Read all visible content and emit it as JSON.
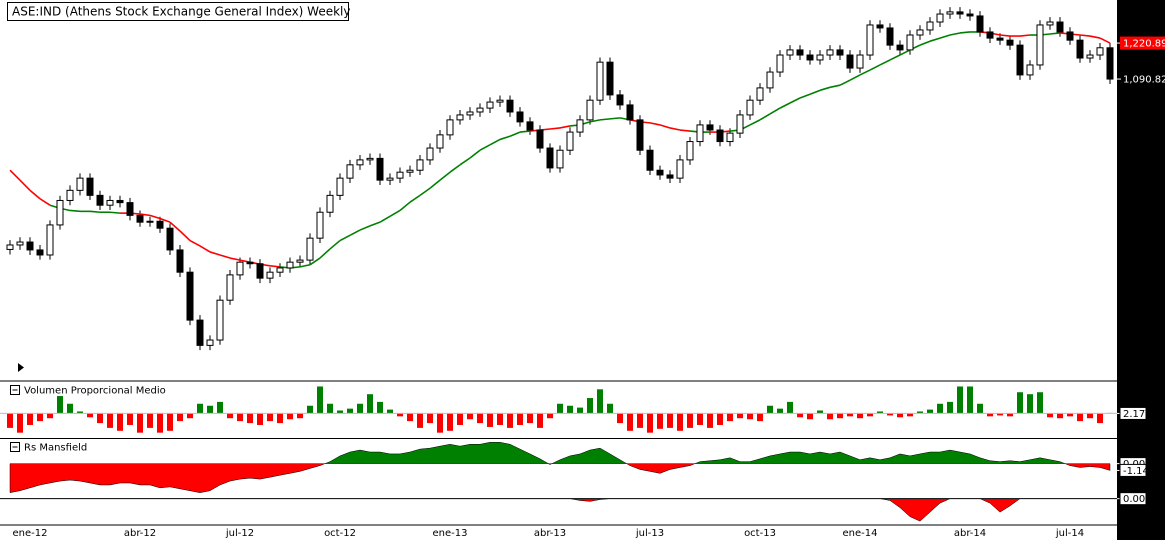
{
  "chart_data": [
    {
      "type": "candlestick",
      "title": "ASE:IND (Athens Stock Exchange General Index) Weekly",
      "categories": [
        null,
        null,
        "ene-12",
        null,
        null,
        null,
        null,
        null,
        null,
        null,
        null,
        null,
        null,
        "abr-12",
        null,
        null,
        null,
        null,
        null,
        null,
        null,
        null,
        null,
        "jul-12",
        null,
        null,
        null,
        null,
        null,
        null,
        null,
        null,
        null,
        "oct-12",
        null,
        null,
        null,
        null,
        null,
        null,
        null,
        null,
        null,
        null,
        "ene-13",
        null,
        null,
        null,
        null,
        null,
        null,
        null,
        null,
        null,
        "abr-13",
        null,
        null,
        null,
        null,
        null,
        null,
        null,
        null,
        null,
        "jul-13",
        null,
        null,
        null,
        null,
        null,
        null,
        null,
        null,
        null,
        null,
        "oct-13",
        null,
        null,
        null,
        null,
        null,
        null,
        null,
        null,
        null,
        "ene-14",
        null,
        null,
        null,
        null,
        null,
        null,
        null,
        null,
        null,
        null,
        "abr-14",
        null,
        null,
        null,
        null,
        null,
        null,
        null,
        null,
        null,
        "jul-14",
        null,
        null,
        null,
        null
      ],
      "candles": [
        [
          640,
          659,
          630,
          649
        ],
        [
          649,
          665,
          639,
          655
        ],
        [
          655,
          665,
          629,
          639
        ],
        [
          639,
          649,
          620,
          629
        ],
        [
          629,
          701,
          620,
          691
        ],
        [
          691,
          757,
          681,
          746
        ],
        [
          746,
          782,
          735,
          770
        ],
        [
          770,
          812,
          758,
          800
        ],
        [
          800,
          812,
          747,
          758
        ],
        [
          758,
          769,
          724,
          735
        ],
        [
          735,
          757,
          724,
          746
        ],
        [
          746,
          757,
          730,
          741
        ],
        [
          741,
          752,
          701,
          712
        ],
        [
          712,
          723,
          687,
          697
        ],
        [
          697,
          709,
          687,
          699
        ],
        [
          699,
          709,
          674,
          684
        ],
        [
          684,
          694,
          629,
          639
        ],
        [
          639,
          649,
          587,
          596
        ],
        [
          596,
          605,
          505,
          513
        ],
        [
          513,
          521,
          467,
          474
        ],
        [
          474,
          489,
          467,
          482
        ],
        [
          482,
          554,
          475,
          546
        ],
        [
          546,
          600,
          538,
          591
        ],
        [
          591,
          624,
          582,
          615
        ],
        [
          615,
          624,
          603,
          612
        ],
        [
          612,
          621,
          576,
          585
        ],
        [
          585,
          605,
          576,
          596
        ],
        [
          596,
          613,
          587,
          604
        ],
        [
          604,
          624,
          595,
          615
        ],
        [
          615,
          628,
          606,
          619
        ],
        [
          619,
          673,
          610,
          663
        ],
        [
          663,
          730,
          653,
          719
        ],
        [
          719,
          769,
          708,
          758
        ],
        [
          758,
          812,
          747,
          800
        ],
        [
          800,
          847,
          788,
          834
        ],
        [
          834,
          860,
          821,
          847
        ],
        [
          847,
          864,
          834,
          851
        ],
        [
          851,
          864,
          783,
          795
        ],
        [
          795,
          812,
          783,
          800
        ],
        [
          800,
          827,
          788,
          815
        ],
        [
          815,
          832,
          803,
          820
        ],
        [
          820,
          860,
          808,
          847
        ],
        [
          847,
          892,
          834,
          879
        ],
        [
          879,
          930,
          866,
          916
        ],
        [
          916,
          974,
          902,
          960
        ],
        [
          960,
          990,
          946,
          975
        ],
        [
          975,
          999,
          960,
          984
        ],
        [
          984,
          1011,
          969,
          996
        ],
        [
          996,
          1030,
          981,
          1015
        ],
        [
          1015,
          1036,
          1000,
          1021
        ],
        [
          1021,
          1036,
          969,
          984
        ],
        [
          984,
          999,
          940,
          954
        ],
        [
          954,
          968,
          916,
          930
        ],
        [
          930,
          944,
          866,
          879
        ],
        [
          879,
          892,
          814,
          826
        ],
        [
          826,
          886,
          814,
          873
        ],
        [
          873,
          938,
          860,
          924
        ],
        [
          924,
          974,
          910,
          960
        ],
        [
          960,
          1036,
          946,
          1021
        ],
        [
          1021,
          1167,
          1006,
          1150
        ],
        [
          1150,
          1167,
          1022,
          1038
        ],
        [
          1038,
          1054,
          991,
          1006
        ],
        [
          1006,
          1021,
          946,
          960
        ],
        [
          960,
          974,
          860,
          873
        ],
        [
          873,
          886,
          808,
          820
        ],
        [
          820,
          832,
          796,
          808
        ],
        [
          808,
          820,
          788,
          800
        ],
        [
          800,
          860,
          788,
          847
        ],
        [
          847,
          910,
          834,
          897
        ],
        [
          897,
          959,
          884,
          945
        ],
        [
          945,
          959,
          916,
          930
        ],
        [
          930,
          944,
          884,
          897
        ],
        [
          897,
          935,
          884,
          921
        ],
        [
          921,
          990,
          907,
          975
        ],
        [
          975,
          1036,
          960,
          1021
        ],
        [
          1021,
          1077,
          1006,
          1061
        ],
        [
          1061,
          1132,
          1045,
          1115
        ],
        [
          1115,
          1194,
          1098,
          1176
        ],
        [
          1176,
          1213,
          1158,
          1195
        ],
        [
          1195,
          1213,
          1158,
          1176
        ],
        [
          1176,
          1194,
          1141,
          1158
        ],
        [
          1158,
          1194,
          1141,
          1176
        ],
        [
          1176,
          1213,
          1158,
          1195
        ],
        [
          1195,
          1213,
          1158,
          1176
        ],
        [
          1176,
          1194,
          1112,
          1129
        ],
        [
          1129,
          1194,
          1112,
          1176
        ],
        [
          1176,
          1311,
          1158,
          1292
        ],
        [
          1292,
          1311,
          1261,
          1280
        ],
        [
          1280,
          1299,
          1195,
          1213
        ],
        [
          1213,
          1231,
          1177,
          1195
        ],
        [
          1195,
          1271,
          1177,
          1252
        ],
        [
          1252,
          1291,
          1233,
          1272
        ],
        [
          1272,
          1324,
          1253,
          1304
        ],
        [
          1304,
          1357,
          1284,
          1337
        ],
        [
          1337,
          1366,
          1317,
          1346
        ],
        [
          1346,
          1366,
          1317,
          1337
        ],
        [
          1337,
          1357,
          1309,
          1329
        ],
        [
          1329,
          1349,
          1245,
          1264
        ],
        [
          1264,
          1283,
          1221,
          1240
        ],
        [
          1240,
          1259,
          1214,
          1232
        ],
        [
          1232,
          1250,
          1195,
          1213
        ],
        [
          1213,
          1231,
          1088,
          1105
        ],
        [
          1105,
          1157,
          1088,
          1140
        ],
        [
          1140,
          1311,
          1123,
          1292
        ],
        [
          1292,
          1324,
          1273,
          1304
        ],
        [
          1304,
          1324,
          1245,
          1264
        ],
        [
          1264,
          1283,
          1214,
          1232
        ],
        [
          1232,
          1250,
          1148,
          1165
        ],
        [
          1165,
          1194,
          1148,
          1176
        ],
        [
          1176,
          1221,
          1158,
          1203
        ],
        [
          1203,
          1221,
          1074,
          1090.82
        ]
      ],
      "up_color": "#ffffff",
      "down_color": "#000000",
      "series": [
        {
          "values": [
            820,
            795,
            770,
            750,
            735,
            728,
            723,
            721,
            721,
            719,
            719,
            717,
            717,
            715,
            712,
            705,
            697,
            678,
            658,
            647,
            635,
            629,
            623,
            619,
            615,
            611,
            608,
            606,
            604,
            606,
            610,
            623,
            641,
            658,
            669,
            680,
            689,
            697,
            710,
            723,
            742,
            758,
            775,
            795,
            815,
            834,
            852,
            873,
            888,
            903,
            912,
            924,
            927,
            930,
            933,
            936,
            942,
            945,
            954,
            960,
            963,
            966,
            960,
            954,
            951,
            945,
            936,
            930,
            927,
            924,
            924,
            924,
            927,
            930,
            945,
            960,
            978,
            996,
            1012,
            1028,
            1040,
            1053,
            1063,
            1070,
            1087,
            1105,
            1122,
            1140,
            1158,
            1176,
            1195,
            1213,
            1228,
            1240,
            1252,
            1260,
            1264,
            1264,
            1260,
            1252,
            1248,
            1248,
            1252,
            1252,
            1256,
            1260,
            1256,
            1252,
            1248,
            1240,
            1220.89
          ],
          "color_above": "#008000",
          "color_below": "#ff0000"
        }
      ],
      "ylim": [
        428,
        1397
      ],
      "log_scale": true,
      "yticks": [
        {
          "value": 1220.89,
          "label": "1,220.89"
        },
        {
          "value": 1090.82,
          "label": "1,090.82"
        }
      ]
    },
    {
      "type": "bar",
      "title": "Volumen Proporcional Medio",
      "values": [
        0.78,
        0.32,
        1.06,
        1.43,
        1.71,
        3.84,
        3.1,
        2.36,
        1.8,
        1.24,
        0.78,
        0.5,
        1.06,
        0.32,
        0.78,
        0.32,
        0.5,
        1.43,
        1.71,
        3.1,
        2.91,
        3.28,
        1.71,
        1.43,
        1.24,
        1.06,
        1.43,
        1.24,
        1.61,
        1.71,
        2.91,
        4.76,
        3.1,
        2.45,
        2.63,
        3.1,
        4.02,
        3.28,
        2.54,
        1.89,
        1.43,
        0.78,
        1.24,
        0.32,
        0.5,
        1.06,
        1.61,
        1.24,
        0.87,
        1.06,
        0.78,
        1.06,
        1.24,
        0.78,
        1.71,
        3.1,
        2.91,
        2.73,
        3.65,
        4.49,
        3.1,
        1.24,
        0.5,
        0.78,
        0.32,
        0.69,
        0.78,
        0.5,
        0.78,
        1.06,
        0.78,
        1.06,
        1.43,
        1.71,
        1.61,
        1.43,
        2.91,
        2.63,
        3.28,
        1.8,
        1.61,
        2.45,
        1.61,
        1.71,
        1.89,
        1.71,
        1.89,
        2.36,
        1.98,
        1.8,
        1.89,
        2.36,
        2.54,
        3.1,
        3.28,
        4.76,
        4.76,
        3.1,
        1.89,
        1.98,
        1.89,
        4.21,
        4.02,
        4.21,
        1.8,
        1.71,
        1.89,
        1.43,
        1.71,
        1.24,
        2.22
      ],
      "baseline": 2.17,
      "up_color": "#008000",
      "down_color": "#ff0000",
      "ylim": [
        0,
        5
      ],
      "yticks": [
        2.17
      ],
      "grid": true
    },
    {
      "type": "area",
      "title": "Rs Mansfield",
      "values": [
        -4.88,
        -4.55,
        -4.07,
        -3.58,
        -3.25,
        -2.93,
        -2.76,
        -2.93,
        -3.25,
        -3.58,
        -3.58,
        -3.25,
        -3.25,
        -3.58,
        -3.58,
        -4.07,
        -3.9,
        -4.23,
        -4.55,
        -4.88,
        -4.55,
        -3.58,
        -2.93,
        -2.6,
        -2.44,
        -2.6,
        -2.28,
        -1.95,
        -1.63,
        -1.3,
        -0.81,
        -0.33,
        0.33,
        1.3,
        1.95,
        2.28,
        1.95,
        1.95,
        1.63,
        1.63,
        1.95,
        2.44,
        2.6,
        2.93,
        3.25,
        2.93,
        3.25,
        3.25,
        3.58,
        3.58,
        3.25,
        2.44,
        1.63,
        0.81,
        -0.16,
        0.65,
        1.3,
        1.63,
        2.28,
        2.6,
        1.63,
        0.65,
        -0.33,
        -0.98,
        -1.3,
        -1.63,
        -0.98,
        -0.65,
        -0.33,
        0.33,
        0.49,
        0.65,
        0.98,
        0.33,
        0.33,
        0.81,
        1.3,
        1.63,
        1.95,
        1.95,
        1.63,
        1.95,
        1.63,
        1.95,
        1.3,
        0.65,
        0.98,
        0.65,
        0.98,
        1.63,
        1.3,
        1.63,
        1.95,
        1.95,
        2.28,
        1.95,
        1.63,
        0.98,
        0.49,
        0.33,
        0.49,
        0.33,
        0.65,
        0.98,
        0.65,
        0.33,
        -0.33,
        -0.65,
        -0.49,
        -0.65,
        -1.14
      ],
      "up_color": "#008000",
      "down_color": "#ff0000",
      "ylim": [
        -5.1,
        3.8
      ],
      "yticks": [
        {
          "value": 0,
          "label": "0.00"
        },
        -1.14
      ]
    },
    {
      "type": "area",
      "values": [
        0,
        0,
        0,
        0,
        0,
        0,
        0,
        0,
        0,
        0,
        0,
        0,
        0,
        0,
        0,
        0,
        0,
        0,
        0,
        0,
        0,
        0,
        0,
        0,
        0,
        0,
        0,
        0,
        0,
        0,
        0,
        0,
        0,
        0,
        0,
        0,
        0,
        0,
        0,
        0,
        0,
        0,
        0,
        0,
        0,
        0,
        0,
        0,
        0,
        0,
        0,
        0,
        0,
        0,
        0,
        0,
        0,
        -0.33,
        -0.49,
        -0.16,
        0,
        0,
        0,
        0,
        0,
        0,
        0,
        0,
        0,
        0,
        0,
        0,
        0,
        0,
        0,
        0,
        0,
        0,
        0,
        0,
        0,
        0,
        0,
        0,
        0,
        0,
        0,
        0,
        -0.33,
        -1.63,
        -3.25,
        -4.07,
        -2.44,
        -0.81,
        0,
        0,
        0,
        0,
        -0.81,
        -2.44,
        -1.3,
        0,
        0,
        0,
        0,
        0,
        0,
        0,
        0,
        0,
        0
      ],
      "down_color": "#ff0000",
      "ylim": [
        -4.4,
        0.3
      ],
      "yticks": [
        {
          "value": 0,
          "label": "0.00"
        }
      ],
      "grid": true
    }
  ]
}
